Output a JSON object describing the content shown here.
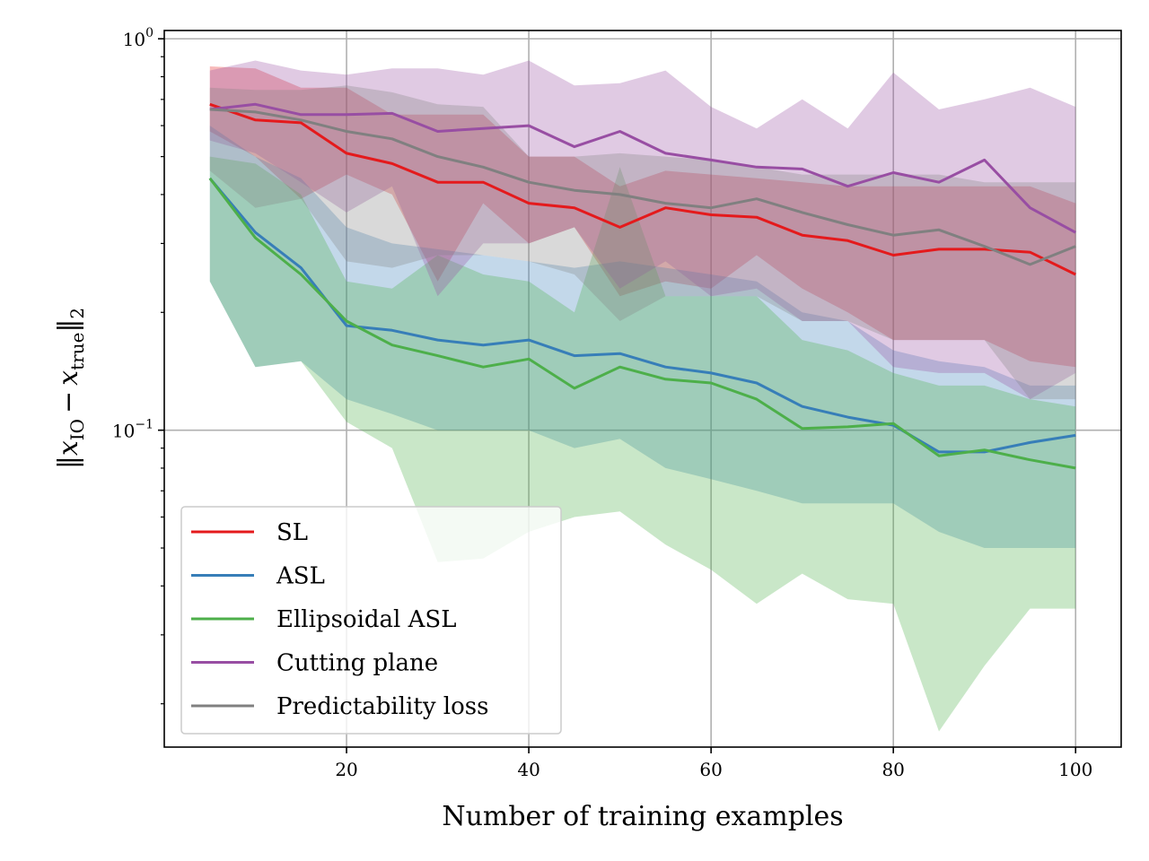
{
  "chart_data": {
    "type": "line",
    "title": "",
    "xlabel": "Number of training examples",
    "ylabel": "||x_IO − x_true||_2",
    "ylabel_parts": {
      "open": "‖",
      "var": "x",
      "sub1": "IO",
      "minus": "−",
      "sub2": "true",
      "close": "‖",
      "norm_sub": "2"
    },
    "yscale": "log",
    "xlim": [
      0,
      105
    ],
    "ylim": [
      0.0155,
      1.05
    ],
    "grid": true,
    "legend_position": "lower-left",
    "x_ticks": [
      20,
      40,
      60,
      80,
      100
    ],
    "x_tick_labels": [
      "20",
      "40",
      "60",
      "80",
      "100"
    ],
    "y_ticks": [
      0.1,
      1.0
    ],
    "y_tick_labels": [
      {
        "base": "10",
        "exp": "−1"
      },
      {
        "base": "10",
        "exp": "0"
      }
    ],
    "x": [
      5,
      10,
      15,
      20,
      25,
      30,
      35,
      40,
      45,
      50,
      55,
      60,
      65,
      70,
      75,
      80,
      85,
      90,
      95,
      100
    ],
    "series": [
      {
        "name": "SL",
        "color": "#e41a1c",
        "band_opacity": 0.3,
        "values": [
          0.68,
          0.62,
          0.61,
          0.51,
          0.48,
          0.43,
          0.43,
          0.38,
          0.37,
          0.33,
          0.37,
          0.355,
          0.35,
          0.315,
          0.305,
          0.28,
          0.29,
          0.29,
          0.285,
          0.25
        ],
        "upper": [
          0.85,
          0.84,
          0.75,
          0.75,
          0.64,
          0.64,
          0.64,
          0.5,
          0.5,
          0.42,
          0.46,
          0.45,
          0.44,
          0.43,
          0.42,
          0.42,
          0.42,
          0.42,
          0.42,
          0.38
        ],
        "lower": [
          0.58,
          0.5,
          0.39,
          0.45,
          0.4,
          0.24,
          0.38,
          0.3,
          0.33,
          0.22,
          0.24,
          0.23,
          0.28,
          0.23,
          0.2,
          0.17,
          0.17,
          0.17,
          0.15,
          0.145
        ]
      },
      {
        "name": "ASL",
        "color": "#377eb8",
        "band_opacity": 0.3,
        "values": [
          0.44,
          0.32,
          0.26,
          0.185,
          0.18,
          0.17,
          0.165,
          0.17,
          0.155,
          0.157,
          0.145,
          0.14,
          0.132,
          0.115,
          0.108,
          0.103,
          0.088,
          0.088,
          0.093,
          0.097
        ],
        "upper": [
          0.6,
          0.5,
          0.44,
          0.33,
          0.3,
          0.29,
          0.28,
          0.27,
          0.26,
          0.27,
          0.26,
          0.25,
          0.24,
          0.2,
          0.19,
          0.16,
          0.15,
          0.145,
          0.13,
          0.13
        ],
        "lower": [
          0.24,
          0.145,
          0.15,
          0.12,
          0.11,
          0.1,
          0.1,
          0.1,
          0.09,
          0.095,
          0.08,
          0.075,
          0.07,
          0.065,
          0.065,
          0.065,
          0.055,
          0.05,
          0.05,
          0.05
        ]
      },
      {
        "name": "Ellipsoidal ASL",
        "color": "#4daf4a",
        "band_opacity": 0.3,
        "values": [
          0.44,
          0.31,
          0.25,
          0.19,
          0.165,
          0.155,
          0.145,
          0.152,
          0.128,
          0.145,
          0.135,
          0.132,
          0.12,
          0.101,
          0.102,
          0.104,
          0.086,
          0.089,
          0.084,
          0.08
        ],
        "upper": [
          0.5,
          0.48,
          0.4,
          0.24,
          0.23,
          0.28,
          0.25,
          0.24,
          0.2,
          0.47,
          0.22,
          0.22,
          0.22,
          0.17,
          0.16,
          0.14,
          0.13,
          0.13,
          0.12,
          0.115
        ],
        "lower": [
          0.24,
          0.145,
          0.15,
          0.105,
          0.09,
          0.046,
          0.047,
          0.055,
          0.06,
          0.062,
          0.051,
          0.044,
          0.036,
          0.043,
          0.037,
          0.036,
          0.017,
          0.025,
          0.035,
          0.035
        ]
      },
      {
        "name": "Cutting plane",
        "color": "#984ea3",
        "band_opacity": 0.3,
        "values": [
          0.66,
          0.68,
          0.64,
          0.64,
          0.645,
          0.58,
          0.59,
          0.6,
          0.53,
          0.58,
          0.51,
          0.49,
          0.47,
          0.465,
          0.42,
          0.455,
          0.43,
          0.49,
          0.37,
          0.32
        ],
        "upper": [
          0.83,
          0.88,
          0.83,
          0.81,
          0.84,
          0.84,
          0.81,
          0.88,
          0.76,
          0.77,
          0.83,
          0.67,
          0.59,
          0.7,
          0.59,
          0.82,
          0.66,
          0.7,
          0.75,
          0.67
        ],
        "lower": [
          0.55,
          0.51,
          0.43,
          0.36,
          0.42,
          0.22,
          0.3,
          0.3,
          0.33,
          0.23,
          0.27,
          0.22,
          0.23,
          0.19,
          0.19,
          0.145,
          0.14,
          0.14,
          0.12,
          0.14
        ]
      },
      {
        "name": "Predictability loss",
        "color": "#808080",
        "band_opacity": 0.3,
        "values": [
          0.66,
          0.65,
          0.62,
          0.58,
          0.555,
          0.5,
          0.47,
          0.43,
          0.41,
          0.4,
          0.38,
          0.37,
          0.39,
          0.36,
          0.335,
          0.315,
          0.325,
          0.295,
          0.265,
          0.295
        ],
        "upper": [
          0.75,
          0.74,
          0.74,
          0.76,
          0.73,
          0.68,
          0.67,
          0.5,
          0.5,
          0.51,
          0.5,
          0.49,
          0.47,
          0.45,
          0.45,
          0.45,
          0.45,
          0.43,
          0.43,
          0.43
        ],
        "lower": [
          0.46,
          0.37,
          0.39,
          0.27,
          0.26,
          0.28,
          0.28,
          0.27,
          0.25,
          0.19,
          0.22,
          0.22,
          0.22,
          0.19,
          0.19,
          0.17,
          0.17,
          0.17,
          0.12,
          0.12
        ]
      }
    ]
  }
}
